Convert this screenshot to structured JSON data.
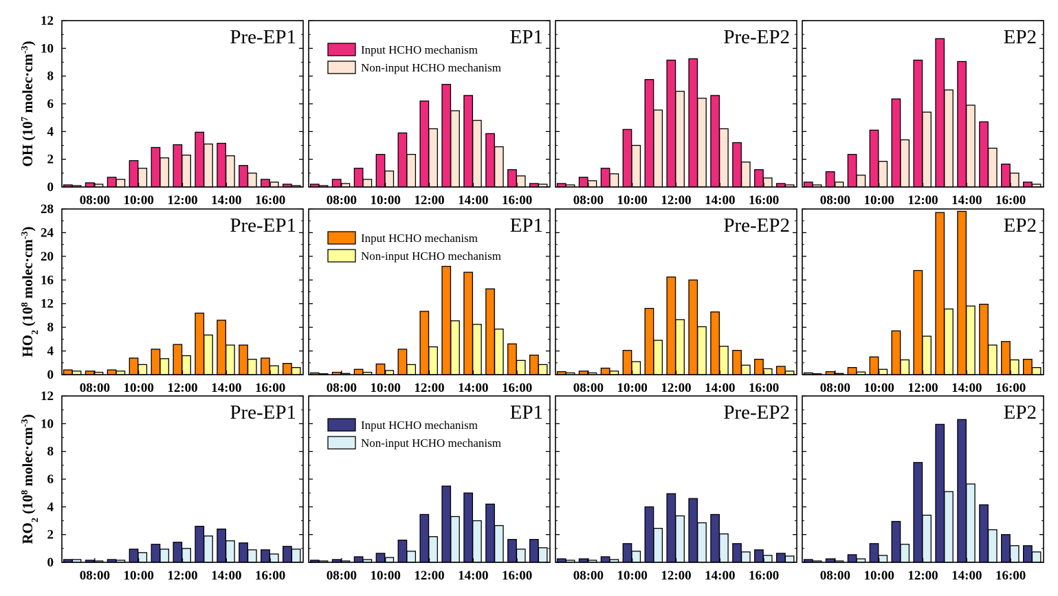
{
  "chart_data": [
    {
      "type": "bar",
      "ylabel": {
        "main": "OH (10",
        "exp": "7",
        "mid": " molec·cm",
        "unit_exp": "-3",
        "end": ")"
      },
      "ylim": [
        0,
        12
      ],
      "yticks": [
        "0",
        "2",
        "4",
        "6",
        "8",
        "10",
        "12"
      ],
      "xtick_labels": [
        "08:00",
        "10:00",
        "12:00",
        "14:00",
        "16:00"
      ],
      "series_colors": [
        "#ee2a7b",
        "#fde5d3"
      ],
      "legend": {
        "entries": [
          "Input HCHO mechanism",
          "Non-input HCHO mechanism"
        ],
        "panel": 1
      },
      "panels": [
        {
          "label": "Pre-EP1",
          "series": [
            {
              "values": [
                0.15,
                0.3,
                0.7,
                1.9,
                2.85,
                3.05,
                3.95,
                3.15,
                1.55,
                0.55,
                0.2
              ]
            },
            {
              "values": [
                0.1,
                0.2,
                0.55,
                1.35,
                2.1,
                2.3,
                3.1,
                2.25,
                1.0,
                0.35,
                0.1
              ]
            }
          ]
        },
        {
          "label": "EP1",
          "series": [
            {
              "values": [
                0.2,
                0.55,
                1.35,
                2.35,
                3.9,
                6.2,
                7.4,
                6.6,
                3.85,
                1.25,
                0.25
              ]
            },
            {
              "values": [
                0.1,
                0.25,
                0.55,
                1.15,
                2.35,
                4.2,
                5.5,
                4.8,
                2.9,
                0.8,
                0.2
              ]
            }
          ]
        },
        {
          "label": "Pre-EP2",
          "series": [
            {
              "values": [
                0.25,
                0.7,
                1.35,
                4.15,
                7.75,
                9.15,
                9.25,
                6.6,
                3.2,
                1.25,
                0.25
              ]
            },
            {
              "values": [
                0.15,
                0.45,
                0.95,
                3.0,
                5.55,
                6.9,
                6.4,
                4.2,
                1.8,
                0.65,
                0.15
              ]
            }
          ]
        },
        {
          "label": "EP2",
          "series": [
            {
              "values": [
                0.35,
                1.1,
                2.35,
                4.1,
                6.35,
                9.15,
                10.7,
                9.05,
                4.7,
                1.65,
                0.35
              ]
            },
            {
              "values": [
                0.15,
                0.35,
                0.85,
                1.85,
                3.4,
                5.4,
                7.0,
                5.9,
                2.8,
                1.0,
                0.2
              ]
            }
          ]
        }
      ]
    },
    {
      "type": "bar",
      "ylabel": {
        "main": "HO",
        "sub": "2",
        "mid": " (10",
        "exp": "8",
        "mid2": " molec·cm",
        "unit_exp": "-3",
        "end": ")"
      },
      "ylim": [
        0,
        28
      ],
      "yticks": [
        "0",
        "4",
        "8",
        "12",
        "16",
        "20",
        "24",
        "28"
      ],
      "xtick_labels": [
        "08:00",
        "10:00",
        "12:00",
        "14:00",
        "16:00"
      ],
      "series_colors": [
        "#ff8200",
        "#ffff9a"
      ],
      "legend": {
        "entries": [
          "Input HCHO mechanism",
          "Non-input HCHO mechanism"
        ],
        "panel": 1
      },
      "panels": [
        {
          "label": "Pre-EP1",
          "series": [
            {
              "values": [
                0.8,
                0.6,
                0.8,
                2.8,
                4.3,
                5.1,
                10.4,
                9.2,
                5.0,
                2.8,
                1.9
              ]
            },
            {
              "values": [
                0.6,
                0.4,
                0.6,
                1.7,
                2.7,
                3.2,
                6.7,
                5.0,
                2.6,
                1.5,
                1.2
              ]
            }
          ]
        },
        {
          "label": "EP1",
          "series": [
            {
              "values": [
                0.3,
                0.4,
                0.9,
                1.8,
                4.3,
                10.7,
                18.3,
                17.3,
                14.5,
                5.2,
                3.3
              ]
            },
            {
              "values": [
                0.15,
                0.2,
                0.4,
                0.7,
                1.7,
                4.7,
                9.1,
                8.5,
                7.7,
                2.4,
                1.7
              ]
            }
          ]
        },
        {
          "label": "Pre-EP2",
          "series": [
            {
              "values": [
                0.5,
                0.6,
                1.1,
                4.1,
                11.2,
                16.5,
                16.0,
                10.6,
                4.1,
                2.6,
                1.4
              ]
            },
            {
              "values": [
                0.3,
                0.3,
                0.6,
                2.2,
                5.8,
                9.3,
                8.1,
                4.8,
                1.6,
                1.0,
                0.6
              ]
            }
          ]
        },
        {
          "label": "EP2",
          "series": [
            {
              "values": [
                0.3,
                0.5,
                1.2,
                3.0,
                7.4,
                17.6,
                27.4,
                27.6,
                11.9,
                5.6,
                2.6
              ]
            },
            {
              "values": [
                0.15,
                0.2,
                0.45,
                0.9,
                2.5,
                6.5,
                11.1,
                11.6,
                5.0,
                2.5,
                1.2
              ]
            }
          ]
        }
      ]
    },
    {
      "type": "bar",
      "ylabel": {
        "main": "RO",
        "sub": "2",
        "mid": " (10",
        "exp": "8",
        "mid2": " molec·cm",
        "unit_exp": "-3",
        "end": ")"
      },
      "ylim": [
        0,
        12
      ],
      "yticks": [
        "0",
        "2",
        "4",
        "6",
        "8",
        "10",
        "12"
      ],
      "xtick_labels": [
        "08:00",
        "10:00",
        "12:00",
        "14:00",
        "16:00"
      ],
      "series_colors": [
        "#3b3a84",
        "#d9f0f6"
      ],
      "legend": {
        "entries": [
          "Input HCHO mechanism",
          "Non-input HCHO mechanism"
        ],
        "panel": 1
      },
      "panels": [
        {
          "label": "Pre-EP1",
          "series": [
            {
              "values": [
                0.2,
                0.15,
                0.2,
                0.95,
                1.3,
                1.45,
                2.6,
                2.4,
                1.4,
                0.9,
                1.15
              ]
            },
            {
              "values": [
                0.2,
                0.1,
                0.15,
                0.7,
                0.95,
                1.0,
                1.9,
                1.55,
                0.9,
                0.6,
                0.95
              ]
            }
          ]
        },
        {
          "label": "EP1",
          "series": [
            {
              "values": [
                0.15,
                0.2,
                0.4,
                0.65,
                1.6,
                3.45,
                5.5,
                5.0,
                4.2,
                1.65,
                1.65
              ]
            },
            {
              "values": [
                0.1,
                0.1,
                0.2,
                0.35,
                0.8,
                1.85,
                3.3,
                3.0,
                2.65,
                0.95,
                1.05
              ]
            }
          ]
        },
        {
          "label": "Pre-EP2",
          "series": [
            {
              "values": [
                0.25,
                0.25,
                0.4,
                1.35,
                4.0,
                4.95,
                4.6,
                3.45,
                1.35,
                0.9,
                0.65
              ]
            },
            {
              "values": [
                0.15,
                0.15,
                0.2,
                0.8,
                2.45,
                3.35,
                2.85,
                2.05,
                0.75,
                0.5,
                0.45
              ]
            }
          ]
        },
        {
          "label": "EP2",
          "series": [
            {
              "values": [
                0.2,
                0.25,
                0.55,
                1.35,
                2.95,
                7.2,
                9.95,
                10.3,
                4.15,
                2.0,
                1.2
              ]
            },
            {
              "values": [
                0.1,
                0.1,
                0.25,
                0.5,
                1.3,
                3.4,
                5.1,
                5.65,
                2.35,
                1.2,
                0.75
              ]
            }
          ]
        }
      ]
    }
  ]
}
